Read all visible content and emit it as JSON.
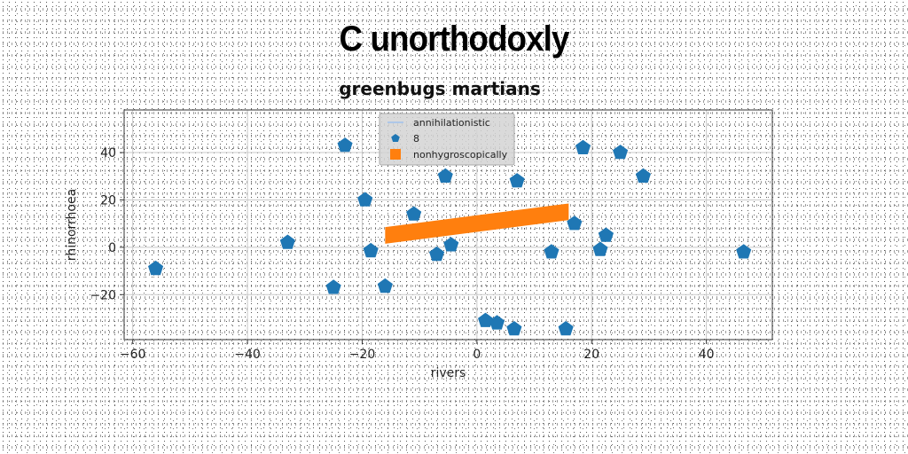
{
  "chart_data": {
    "type": "scatter",
    "title": "C unorthodoxly",
    "subtitle": "greenbugs martians",
    "xlabel": "rivers",
    "ylabel": "rhinorrhoea",
    "xlim": [
      -61.5,
      51.5
    ],
    "ylim": [
      -39,
      58
    ],
    "grid": true,
    "legend_position": "top-center",
    "xticks": [
      -60,
      -40,
      -20,
      0,
      20,
      40
    ],
    "yticks": [
      -20,
      0,
      20,
      40
    ],
    "series": [
      {
        "name": "annihilationistic",
        "kind": "line",
        "color": "#aec7e8",
        "x": [],
        "y": []
      },
      {
        "name": "8",
        "kind": "scatter",
        "marker": "pentagon",
        "color": "#1f77b4",
        "x": [
          -56,
          -33,
          -25,
          -23,
          -19.5,
          -18.5,
          -16,
          -11,
          -7,
          -5.5,
          -4.5,
          1.5,
          3.5,
          6.5,
          7,
          13,
          15.5,
          17,
          18.5,
          21.5,
          22.5,
          25,
          29,
          46.5
        ],
        "y": [
          -9,
          2,
          -17,
          43,
          20,
          -1.5,
          -16.5,
          14,
          -3,
          30,
          1,
          -31,
          -32,
          -34.5,
          28,
          -2,
          -34.5,
          10,
          42,
          -1,
          5,
          40,
          30,
          -2
        ]
      },
      {
        "name": "nonhygroscopically",
        "kind": "band",
        "color": "#ff7f0e",
        "x": [
          -16,
          16
        ],
        "y": [
          5,
          15
        ],
        "thickness": 7
      }
    ]
  }
}
